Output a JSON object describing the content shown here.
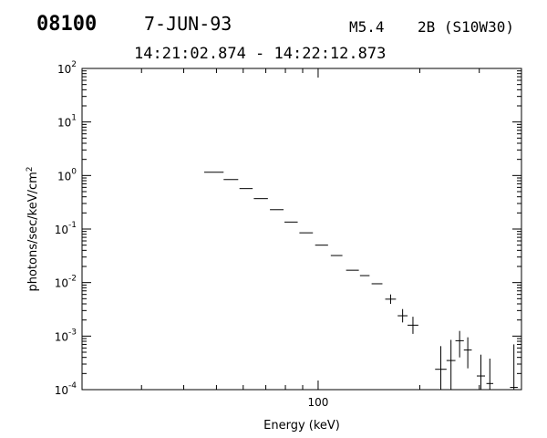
{
  "header": {
    "event_id": "08100",
    "date": "7-JUN-93",
    "flare_class": "M5.4",
    "flare_location": "2B (S10W30)",
    "time_range": "14:21:02.874 - 14:22:12.873"
  },
  "chart_data": {
    "type": "scatter",
    "title": "",
    "xlabel": "Energy (keV)",
    "ylabel": "photons/sec/keV/cm^2",
    "x_scale": "log",
    "y_scale": "log",
    "xlim": [
      20,
      400
    ],
    "ylim": [
      0.0001,
      100
    ],
    "x_tick_labels": [
      "100"
    ],
    "y_tick_labels": [
      {
        "mantissa": "10",
        "exponent": "-4",
        "value": 0.0001
      },
      {
        "mantissa": "10",
        "exponent": "-3",
        "value": 0.001
      },
      {
        "mantissa": "10",
        "exponent": "-2",
        "value": 0.01
      },
      {
        "mantissa": "10",
        "exponent": "-1",
        "value": 0.1
      },
      {
        "mantissa": "10",
        "exponent": "0",
        "value": 1
      },
      {
        "mantissa": "10",
        "exponent": "1",
        "value": 10
      },
      {
        "mantissa": "10",
        "exponent": "2",
        "value": 100
      }
    ],
    "series": [
      {
        "points": [
          {
            "x_lo": 46.0,
            "x_hi": 52.5,
            "y": 1.15
          },
          {
            "x_lo": 52.5,
            "x_hi": 58.0,
            "y": 0.84
          },
          {
            "x_lo": 58.5,
            "x_hi": 64.0,
            "y": 0.57
          },
          {
            "x_lo": 64.5,
            "x_hi": 71.0,
            "y": 0.37
          },
          {
            "x_lo": 72.0,
            "x_hi": 79.0,
            "y": 0.23
          },
          {
            "x_lo": 79.5,
            "x_hi": 87.0,
            "y": 0.135
          },
          {
            "x_lo": 88.0,
            "x_hi": 96.5,
            "y": 0.085
          },
          {
            "x_lo": 98.0,
            "x_hi": 107.0,
            "y": 0.05
          },
          {
            "x_lo": 109.0,
            "x_hi": 118.0,
            "y": 0.032
          },
          {
            "x_lo": 121.0,
            "x_hi": 132.0,
            "y": 0.017
          },
          {
            "x_lo": 133.0,
            "x_hi": 142.0,
            "y": 0.0135
          },
          {
            "x_lo": 144.0,
            "x_hi": 155.0,
            "y": 0.0095
          },
          {
            "x_lo": 158.0,
            "x_hi": 170.0,
            "y": 0.0049,
            "y_lo": 0.004,
            "y_hi": 0.006
          },
          {
            "x_lo": 172.0,
            "x_hi": 184.0,
            "y": 0.0024,
            "y_lo": 0.0018,
            "y_hi": 0.0032
          },
          {
            "x_lo": 184.0,
            "x_hi": 198.0,
            "y": 0.0016,
            "y_lo": 0.0011,
            "y_hi": 0.0023
          },
          {
            "x_lo": 222.0,
            "x_hi": 240.0,
            "y": 0.00024,
            "y_lo": 0.0001,
            "y_hi": 0.00065
          },
          {
            "x_lo": 240.0,
            "x_hi": 255.0,
            "y": 0.00035,
            "y_lo": 0.0001,
            "y_hi": 0.00085
          },
          {
            "x_lo": 255.0,
            "x_hi": 270.0,
            "y": 0.00082,
            "y_lo": 0.0004,
            "y_hi": 0.00125
          },
          {
            "x_lo": 270.0,
            "x_hi": 285.0,
            "y": 0.00055,
            "y_lo": 0.00025,
            "y_hi": 0.00095
          },
          {
            "x_lo": 295.0,
            "x_hi": 312.0,
            "y": 0.00018,
            "y_lo": 0.0001,
            "y_hi": 0.00045
          },
          {
            "x_lo": 315.0,
            "x_hi": 330.0,
            "y": 0.00013,
            "y_lo": 0.0001,
            "y_hi": 0.00038
          },
          {
            "x_lo": 370.0,
            "x_hi": 390.0,
            "y": 0.00011,
            "y_lo": 0.0001,
            "y_hi": 0.0007
          }
        ]
      }
    ]
  }
}
